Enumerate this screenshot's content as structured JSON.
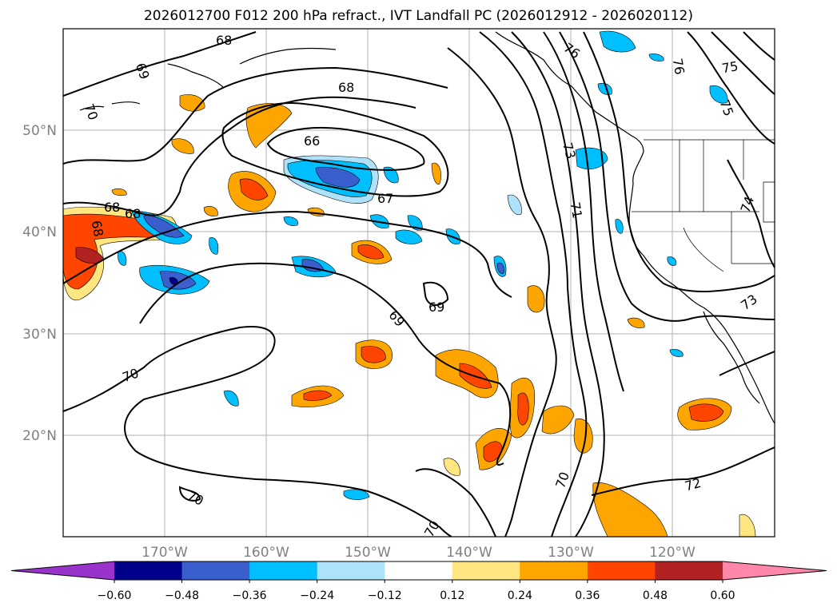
{
  "title": "2026012700 F012 200 hPa refract., IVT Landfall PC (2026012912 - 2026020112)",
  "lat_labels": [
    "50°N",
    "40°N",
    "30°N",
    "20°N"
  ],
  "lon_labels": [
    "170°W",
    "160°W",
    "150°W",
    "140°W",
    "130°W",
    "120°W"
  ],
  "contour_labels": [
    "68",
    "69",
    "70",
    "68",
    "66",
    "67",
    "68",
    "68",
    "68",
    "69",
    "69",
    "70",
    "70",
    "70",
    "70",
    "72",
    "73",
    "71",
    "76",
    "76",
    "75",
    "75",
    "74",
    "73"
  ],
  "colorbar": {
    "tick_labels": [
      "−0.60",
      "−0.48",
      "−0.36",
      "−0.24",
      "−0.12",
      "0.12",
      "0.24",
      "0.36",
      "0.48",
      "0.60"
    ],
    "colors": [
      "#9933cc",
      "#00008b",
      "#3a5fcd",
      "#00bfff",
      "#aee2fa",
      "#ffffff",
      "#ffe680",
      "#ffa500",
      "#ff4500",
      "#b22222",
      "#ff88aa"
    ]
  }
}
